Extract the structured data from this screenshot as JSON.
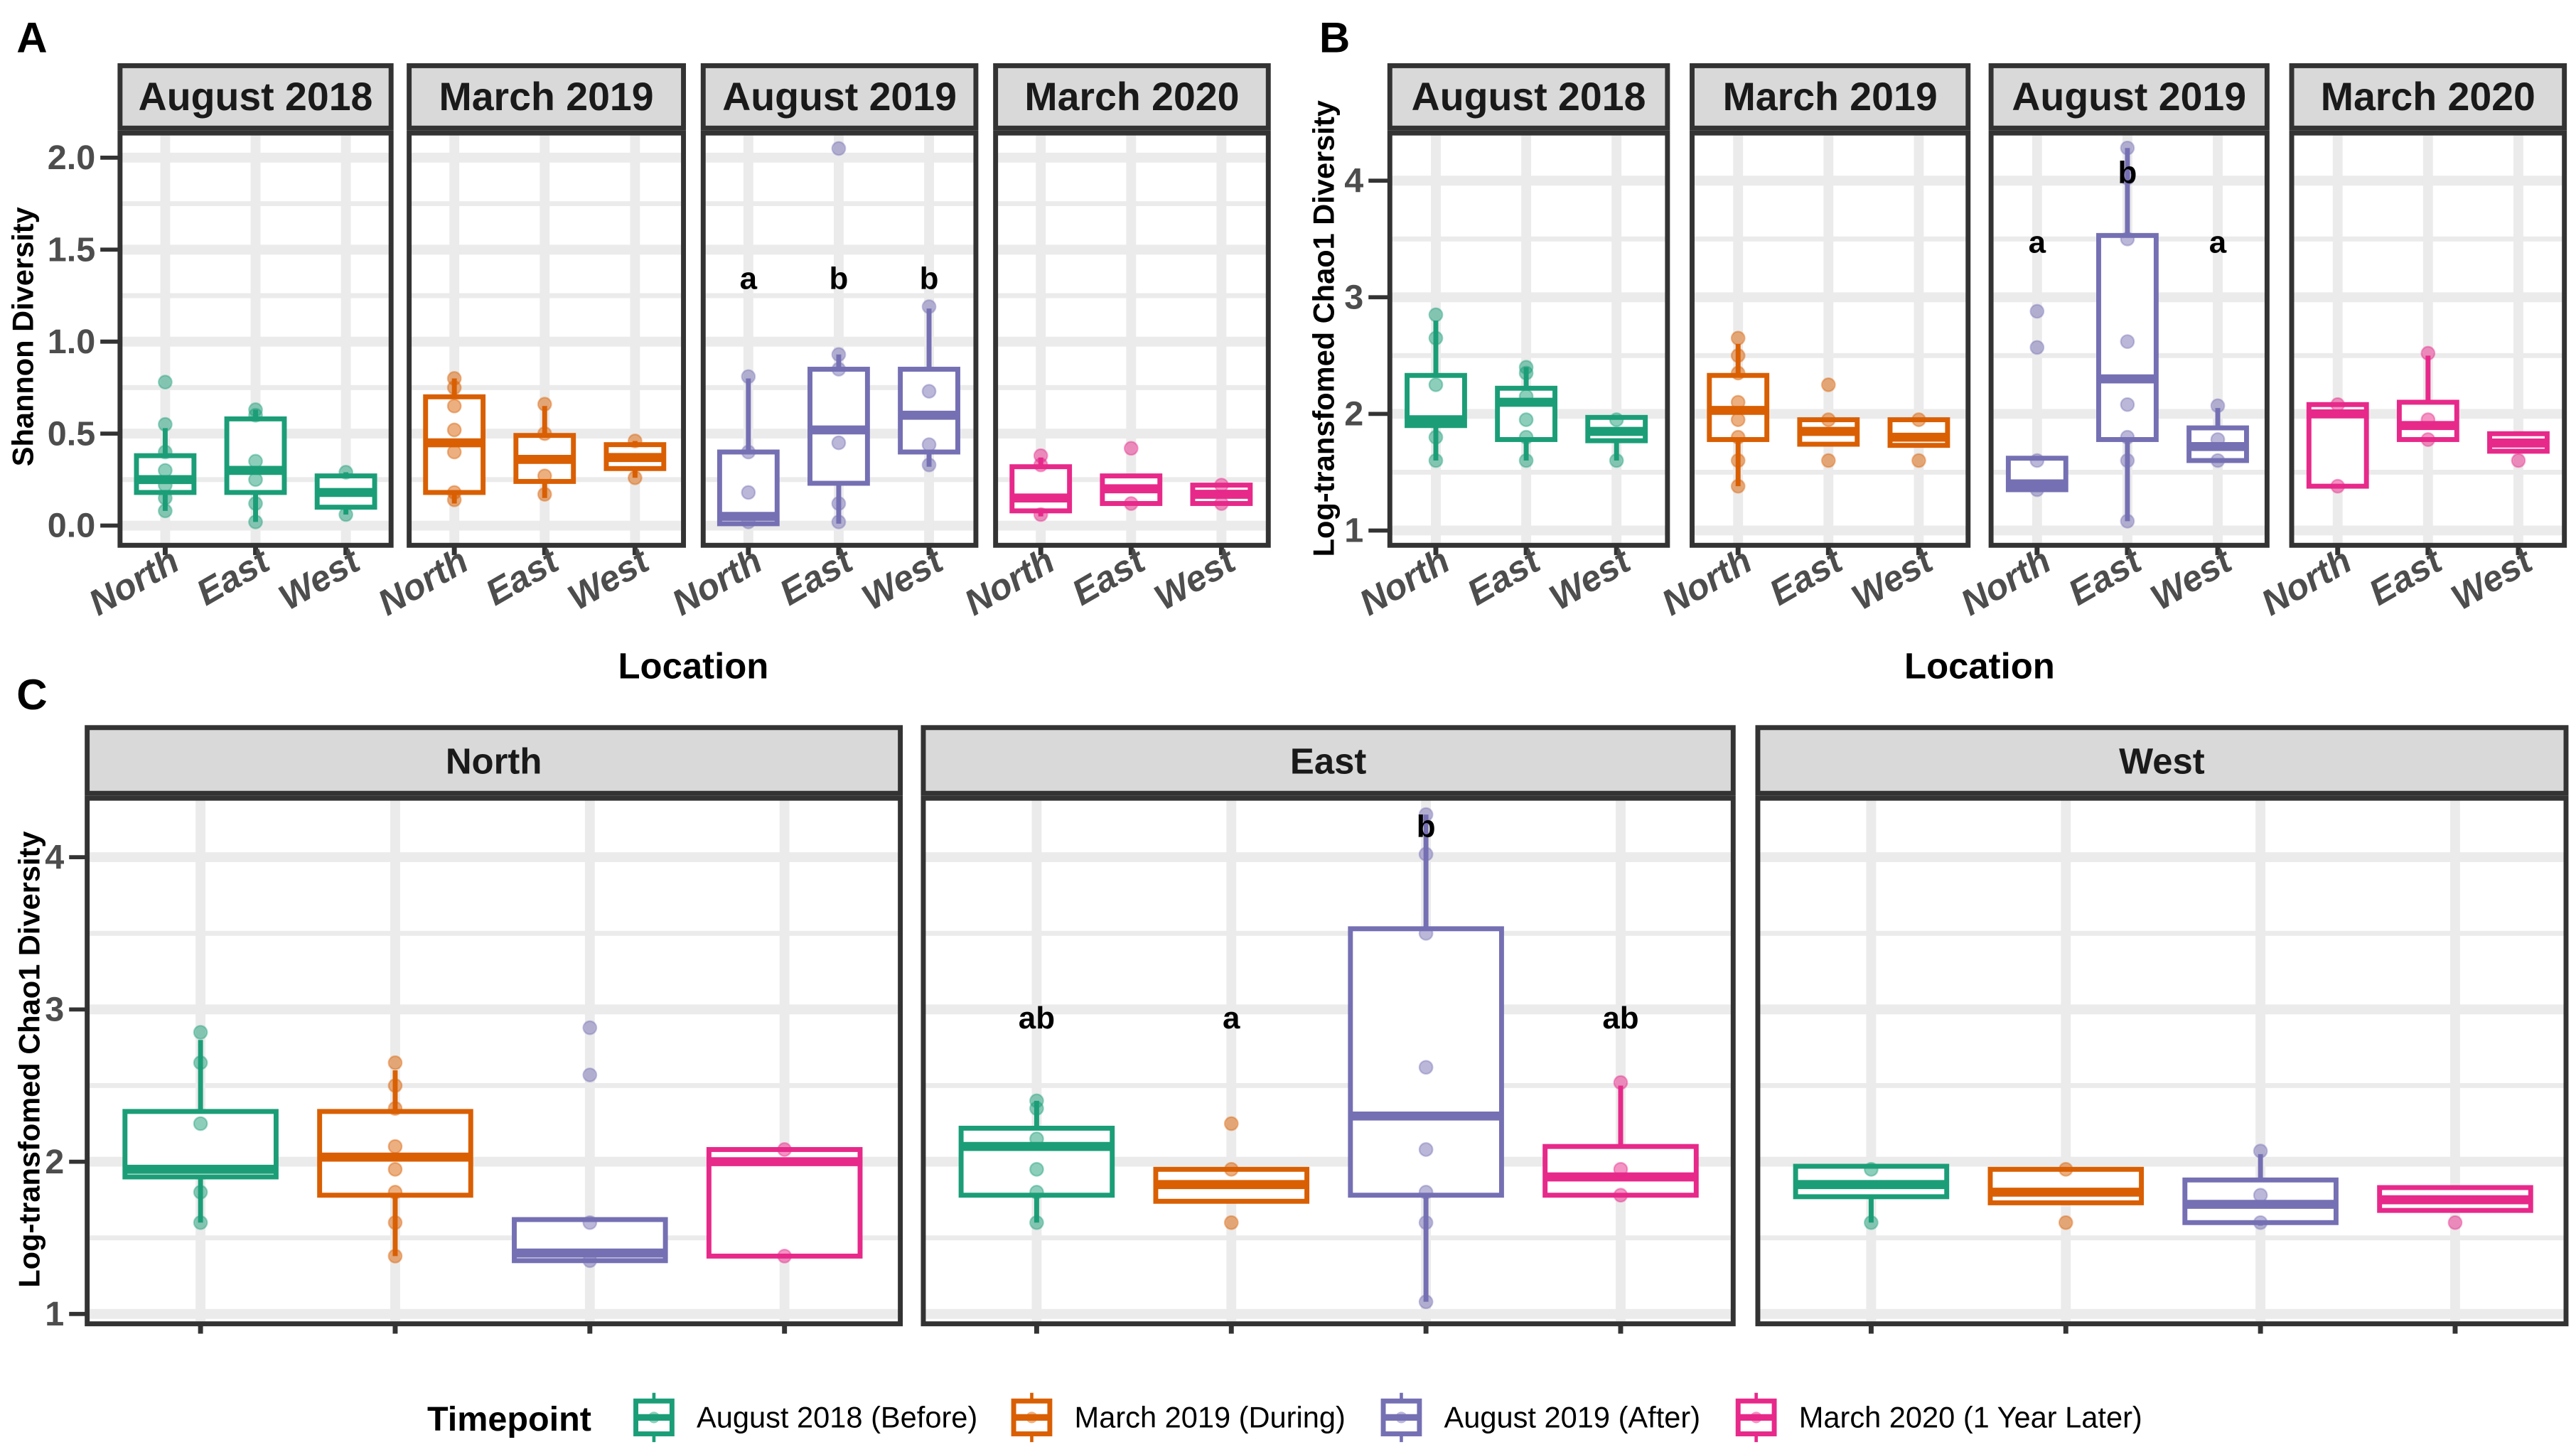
{
  "panel_labels": [
    "A",
    "B",
    "C"
  ],
  "colors": [
    "#1b9e77",
    "#d95f02",
    "#7570b3",
    "#e7298a"
  ],
  "legend": {
    "title": "Timepoint",
    "items": [
      "August 2018 (Before)",
      "March 2019 (During)",
      "August 2019 (After)",
      "March 2020 (1 Year Later)"
    ]
  },
  "chart_data": [
    {
      "panel": "A",
      "type": "box",
      "ylabel": "Shannon Diversity",
      "xlabel": "Location",
      "ylim": [
        -0.1,
        2.15
      ],
      "ytick_values": [
        0,
        0.5,
        1,
        1.5,
        2
      ],
      "yticks": [
        "0.0",
        "0.5",
        "1.0",
        "1.5",
        "2.0"
      ],
      "categories": [
        "North",
        "East",
        "West"
      ],
      "box_format": "[whisker_low, q1, median, q3, whisker_high, points]",
      "facets": [
        {
          "title": "August 2018",
          "color": 0,
          "boxes": [
            [
              0.08,
              0.18,
              0.25,
              0.38,
              0.53,
              [
                0.78,
                0.55,
                0.4,
                0.3,
                0.22,
                0.15,
                0.08
              ]
            ],
            [
              0.02,
              0.18,
              0.3,
              0.58,
              0.63,
              [
                0.63,
                0.6,
                0.35,
                0.25,
                0.12,
                0.02
              ]
            ],
            [
              0.06,
              0.1,
              0.18,
              0.27,
              0.29,
              [
                0.29,
                0.06
              ]
            ]
          ],
          "letters": [],
          "letter_y": []
        },
        {
          "title": "March 2019",
          "color": 1,
          "boxes": [
            [
              0.12,
              0.18,
              0.45,
              0.7,
              0.8,
              [
                0.8,
                0.75,
                0.65,
                0.52,
                0.4,
                0.18,
                0.14
              ]
            ],
            [
              0.15,
              0.24,
              0.36,
              0.49,
              0.65,
              [
                0.66,
                0.5,
                0.27,
                0.17
              ]
            ],
            [
              0.26,
              0.31,
              0.37,
              0.44,
              0.46,
              [
                0.46,
                0.26
              ]
            ]
          ],
          "letters": [],
          "letter_y": []
        },
        {
          "title": "August 2019",
          "color": 2,
          "boxes": [
            [
              0.01,
              0.01,
              0.05,
              0.4,
              0.8,
              [
                0.81,
                0.4,
                0.18,
                0.02
              ]
            ],
            [
              0.01,
              0.23,
              0.52,
              0.85,
              0.93,
              [
                2.05,
                0.93,
                0.85,
                0.45,
                0.12,
                0.02
              ]
            ],
            [
              0.32,
              0.4,
              0.6,
              0.85,
              1.18,
              [
                1.19,
                0.73,
                0.44,
                0.33
              ]
            ]
          ],
          "letters": [
            "a",
            "b",
            "b"
          ],
          "letter_y": [
            1.35,
            1.35,
            1.35
          ]
        },
        {
          "title": "March 2020",
          "color": 3,
          "boxes": [
            [
              0.05,
              0.08,
              0.15,
              0.32,
              0.37,
              [
                0.38,
                0.33,
                0.06
              ]
            ],
            [
              0.12,
              0.12,
              0.2,
              0.27,
              0.27,
              [
                0.42,
                0.12
              ]
            ],
            [
              0.12,
              0.12,
              0.17,
              0.22,
              0.22,
              [
                0.22,
                0.12
              ]
            ]
          ],
          "letters": [],
          "letter_y": []
        }
      ]
    },
    {
      "panel": "B",
      "type": "box",
      "ylabel": "Log-transfomed Chao1 Diversity",
      "xlabel": "Location",
      "ylim": [
        0.95,
        4.42
      ],
      "ytick_values": [
        1,
        2,
        3,
        4
      ],
      "yticks": [
        "1",
        "2",
        "3",
        "4"
      ],
      "categories": [
        "North",
        "East",
        "West"
      ],
      "facets": [
        {
          "title": "August 2018",
          "color": 0,
          "boxes": [
            [
              1.6,
              1.9,
              1.95,
              2.33,
              2.8,
              [
                2.85,
                2.65,
                2.25,
                1.8,
                1.6
              ]
            ],
            [
              1.6,
              1.78,
              2.1,
              2.22,
              2.4,
              [
                2.4,
                2.35,
                2.15,
                1.95,
                1.8,
                1.6
              ]
            ],
            [
              1.6,
              1.77,
              1.85,
              1.97,
              1.97,
              [
                1.95,
                1.6
              ]
            ]
          ],
          "letters": [],
          "letter_y": []
        },
        {
          "title": "March 2019",
          "color": 1,
          "boxes": [
            [
              1.38,
              1.78,
              2.03,
              2.33,
              2.6,
              [
                2.65,
                2.5,
                2.35,
                2.1,
                1.95,
                1.8,
                1.6,
                1.38
              ]
            ],
            [
              1.74,
              1.74,
              1.85,
              1.95,
              1.95,
              [
                2.25,
                1.95,
                1.6
              ]
            ],
            [
              1.73,
              1.73,
              1.8,
              1.95,
              1.95,
              [
                1.95,
                1.6
              ]
            ]
          ],
          "letters": [],
          "letter_y": []
        },
        {
          "title": "August 2019",
          "color": 2,
          "boxes": [
            [
              1.35,
              1.35,
              1.4,
              1.62,
              1.62,
              [
                2.88,
                2.57,
                1.6,
                1.35
              ]
            ],
            [
              1.08,
              1.78,
              2.3,
              3.53,
              4.28,
              [
                4.28,
                4.02,
                3.5,
                2.62,
                2.08,
                1.8,
                1.6,
                1.08
              ]
            ],
            [
              1.58,
              1.6,
              1.72,
              1.88,
              2.05,
              [
                2.07,
                1.78,
                1.6
              ]
            ]
          ],
          "letters": [
            "a",
            "b",
            "a"
          ],
          "letter_y": [
            3.48,
            4.08,
            3.48
          ]
        },
        {
          "title": "March 2020",
          "color": 3,
          "boxes": [
            [
              1.38,
              1.38,
              2.0,
              2.08,
              2.08,
              [
                2.08,
                1.38
              ]
            ],
            [
              1.78,
              1.78,
              1.9,
              2.1,
              2.5,
              [
                2.52,
                1.95,
                1.78
              ]
            ],
            [
              1.68,
              1.68,
              1.75,
              1.83,
              1.83,
              [
                1.6
              ]
            ]
          ],
          "letters": [],
          "letter_y": []
        }
      ]
    },
    {
      "panel": "C",
      "type": "box",
      "ylabel": "Log-transfomed Chao1 Diversity",
      "ylim": [
        0.95,
        4.42
      ],
      "ytick_values": [
        1,
        2,
        3,
        4
      ],
      "yticks": [
        "1",
        "2",
        "3",
        "4"
      ],
      "categories": [
        "August 2018 (Before)",
        "March 2019 (During)",
        "August 2019 (After)",
        "March 2020 (1 Year Later)"
      ],
      "facets": [
        {
          "title": "North",
          "boxes": [
            [
              1.6,
              1.9,
              1.95,
              2.33,
              2.8,
              [
                2.85,
                2.65,
                2.25,
                1.8,
                1.6
              ]
            ],
            [
              1.38,
              1.78,
              2.03,
              2.33,
              2.6,
              [
                2.65,
                2.5,
                2.35,
                2.1,
                1.95,
                1.8,
                1.6,
                1.38
              ]
            ],
            [
              1.35,
              1.35,
              1.4,
              1.62,
              1.62,
              [
                2.88,
                2.57,
                1.6,
                1.35
              ]
            ],
            [
              1.38,
              1.38,
              2.0,
              2.08,
              2.08,
              [
                2.08,
                1.38
              ]
            ]
          ],
          "letters": [],
          "letter_y": []
        },
        {
          "title": "East",
          "boxes": [
            [
              1.6,
              1.78,
              2.1,
              2.22,
              2.4,
              [
                2.4,
                2.35,
                2.15,
                1.95,
                1.8,
                1.6
              ]
            ],
            [
              1.74,
              1.74,
              1.85,
              1.95,
              1.95,
              [
                2.25,
                1.95,
                1.6
              ]
            ],
            [
              1.08,
              1.78,
              2.3,
              3.53,
              4.28,
              [
                4.28,
                4.02,
                3.5,
                2.62,
                2.08,
                1.8,
                1.6,
                1.08
              ]
            ],
            [
              1.78,
              1.78,
              1.9,
              2.1,
              2.5,
              [
                2.52,
                1.95,
                1.78
              ]
            ]
          ],
          "letters": [
            "ab",
            "a",
            "b",
            "ab"
          ],
          "letter_y": [
            2.95,
            2.95,
            4.21,
            2.95
          ]
        },
        {
          "title": "West",
          "boxes": [
            [
              1.6,
              1.77,
              1.85,
              1.97,
              1.97,
              [
                1.95,
                1.6
              ]
            ],
            [
              1.73,
              1.73,
              1.8,
              1.95,
              1.95,
              [
                1.95,
                1.6
              ]
            ],
            [
              1.58,
              1.6,
              1.72,
              1.88,
              2.05,
              [
                2.07,
                1.78,
                1.6
              ]
            ],
            [
              1.68,
              1.68,
              1.75,
              1.83,
              1.83,
              [
                1.6
              ]
            ]
          ],
          "letters": [],
          "letter_y": []
        }
      ]
    }
  ]
}
